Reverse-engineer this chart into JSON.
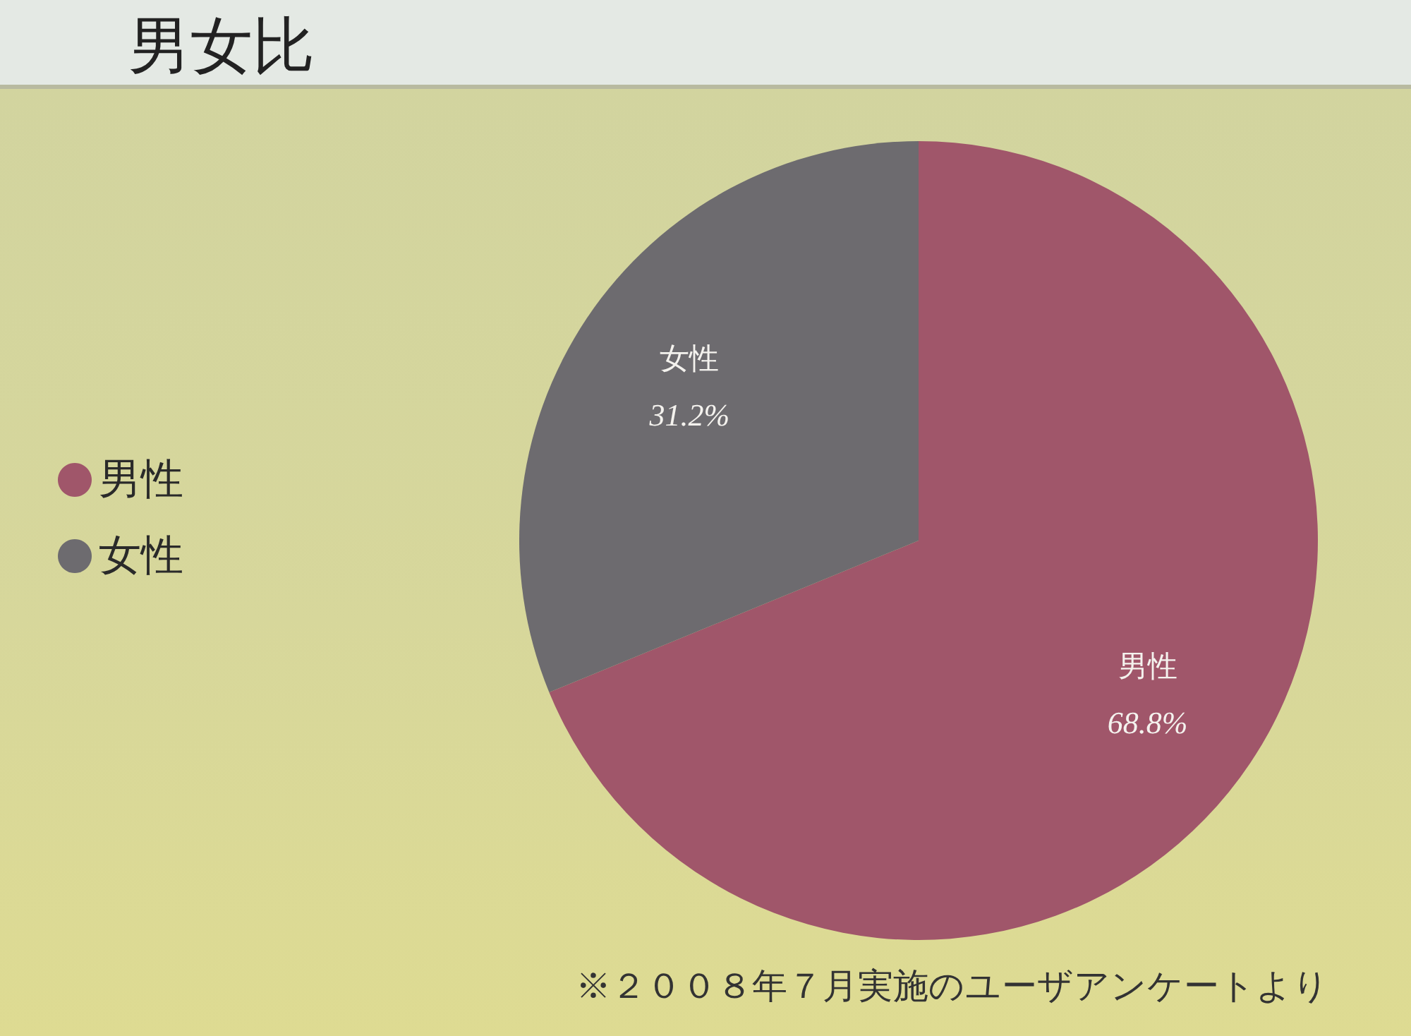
{
  "chart_data": {
    "type": "pie",
    "title": "男女比",
    "categories": [
      "男性",
      "女性"
    ],
    "values": [
      68.8,
      31.2
    ],
    "colors": [
      "#a0566a",
      "#6d6b6f"
    ],
    "value_labels": [
      "68.8%",
      "31.2%"
    ],
    "legend": "left",
    "annotations": [
      "※２００８年７月実施のユーザアンケートより"
    ]
  }
}
